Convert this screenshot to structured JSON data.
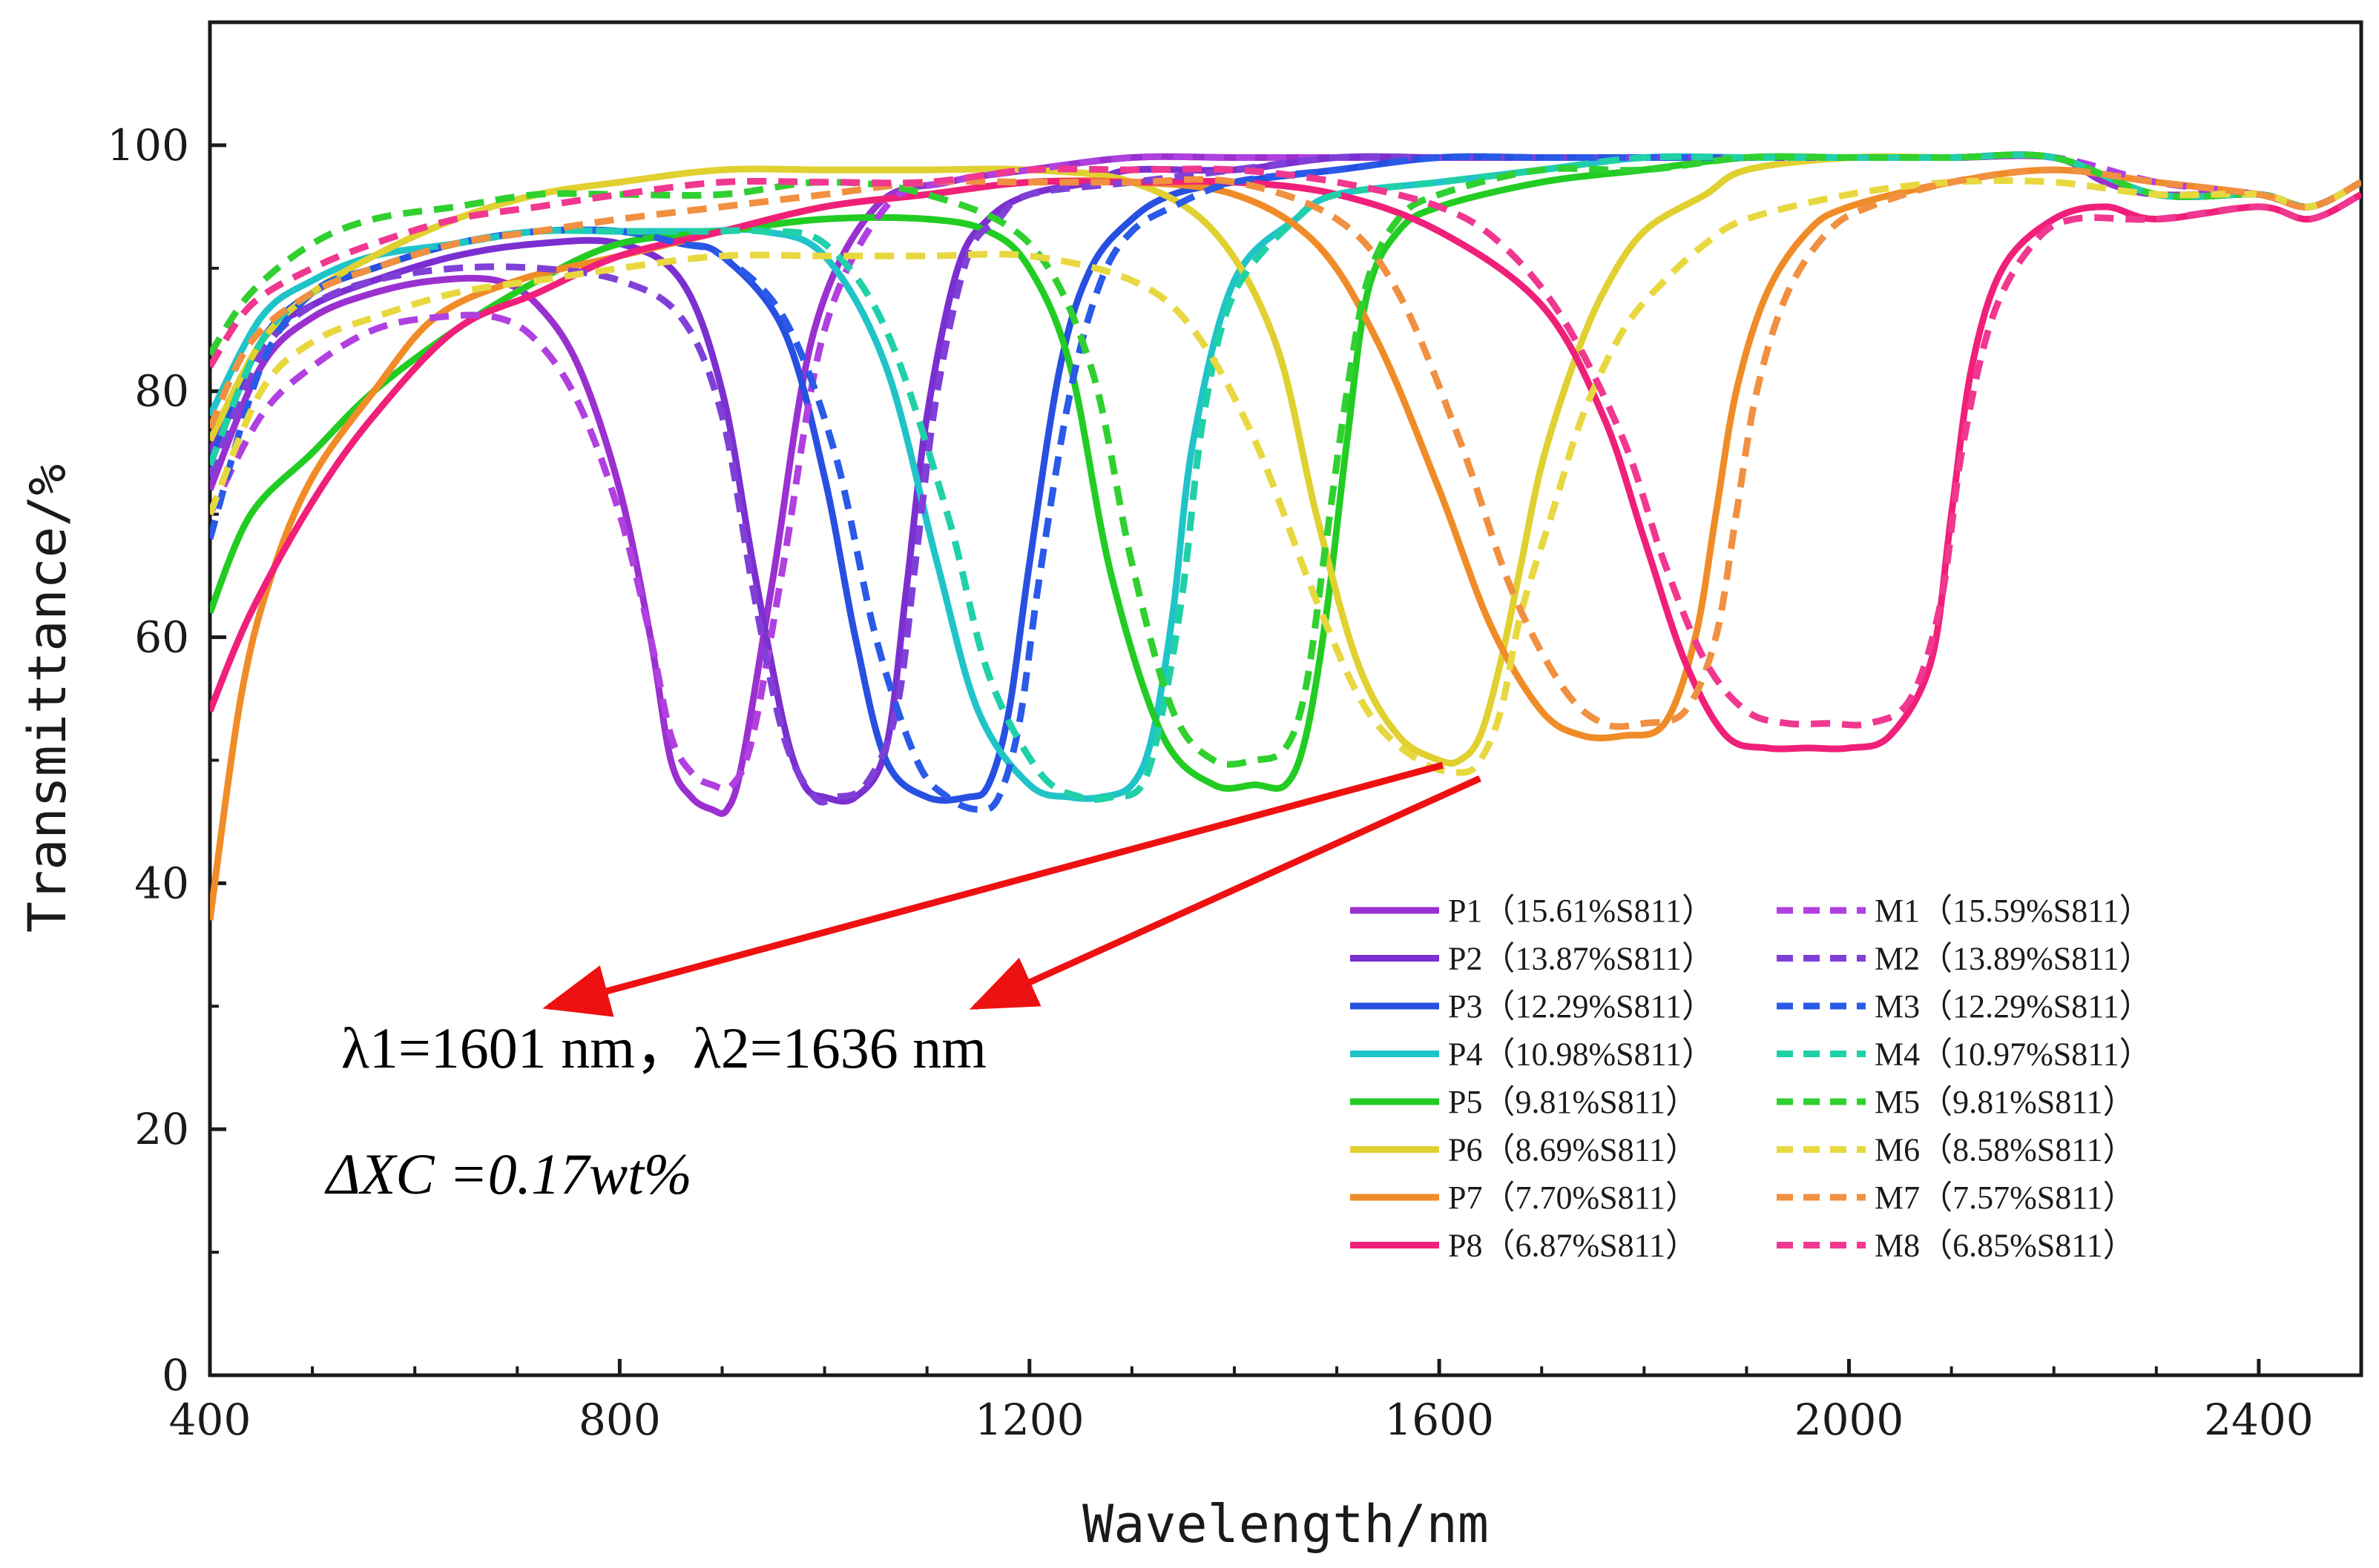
{
  "chart_data": {
    "type": "line",
    "xlabel": "Wavelength/nm",
    "ylabel": "Transmittance/%",
    "xlim": [
      400,
      2500
    ],
    "ylim": [
      0,
      110
    ],
    "xticks": [
      400,
      800,
      1200,
      1600,
      2000,
      2400
    ],
    "yticks": [
      0,
      20,
      40,
      60,
      80,
      100
    ],
    "grid": false,
    "legend_position": "bottom-right",
    "annotations": {
      "line1": "λ1=1601 nm，λ2=1636 nm",
      "line2": "ΔXC =0.17wt%"
    },
    "series": [
      {
        "name": "P1（15.61%S811）",
        "style": "solid",
        "color": "#9b30d0",
        "x": [
          400,
          450,
          500,
          560,
          620,
          680,
          720,
          760,
          800,
          830,
          850,
          870,
          890,
          905,
          920,
          950,
          990,
          1050,
          1120,
          1200,
          1300,
          1400,
          1500,
          1600,
          1650,
          1700,
          1800,
          1900,
          2000,
          2100,
          2200,
          2250,
          2300,
          2400,
          2450,
          2500
        ],
        "y": [
          72,
          82,
          86,
          88,
          89,
          89,
          87,
          82,
          72,
          60,
          50,
          47,
          46,
          46,
          50,
          65,
          85,
          95,
          97,
          98,
          99,
          99,
          99,
          99,
          99,
          99,
          99,
          99,
          99,
          99,
          99,
          97,
          96,
          96,
          95,
          97
        ]
      },
      {
        "name": "P2（13.87%S811）",
        "style": "solid",
        "color": "#7b2fd0",
        "x": [
          400,
          450,
          500,
          560,
          640,
          720,
          800,
          860,
          900,
          930,
          960,
          980,
          1000,
          1030,
          1060,
          1080,
          1100,
          1130,
          1160,
          1200,
          1260,
          1300,
          1400,
          1500,
          1600,
          1700,
          1800,
          1900,
          2000,
          2100,
          2200,
          2300,
          2400,
          2450,
          2500
        ],
        "y": [
          75,
          84,
          87,
          89,
          91,
          92,
          92,
          89,
          80,
          66,
          53,
          48,
          47,
          47,
          51,
          64,
          78,
          90,
          94,
          96,
          97,
          98,
          98,
          99,
          99,
          99,
          99,
          99,
          99,
          99,
          99,
          96,
          96,
          95,
          97
        ]
      },
      {
        "name": "P3（12.29%S811）",
        "style": "solid",
        "color": "#2850e0",
        "x": [
          400,
          450,
          500,
          560,
          640,
          720,
          800,
          860,
          900,
          960,
          1000,
          1030,
          1060,
          1100,
          1140,
          1160,
          1180,
          1200,
          1230,
          1260,
          1300,
          1340,
          1400,
          1500,
          1600,
          1700,
          1800,
          1900,
          2000,
          2100,
          2200,
          2300,
          2400,
          2450,
          2500
        ],
        "y": [
          74,
          84,
          88,
          90,
          92,
          93,
          93,
          92,
          91,
          85,
          73,
          60,
          50,
          47,
          47,
          48,
          54,
          66,
          82,
          90,
          94,
          96,
          97,
          98,
          99,
          99,
          99,
          99,
          99,
          99,
          99,
          96,
          96,
          95,
          97
        ]
      },
      {
        "name": "P4（10.98%S811）",
        "style": "solid",
        "color": "#20c4c8",
        "x": [
          400,
          450,
          500,
          560,
          640,
          720,
          800,
          880,
          940,
          1000,
          1060,
          1110,
          1150,
          1200,
          1240,
          1270,
          1300,
          1320,
          1340,
          1360,
          1400,
          1460,
          1500,
          1600,
          1700,
          1800,
          1900,
          2000,
          2100,
          2200,
          2300,
          2400,
          2450,
          2500
        ],
        "y": [
          78,
          86,
          89,
          91,
          92,
          93,
          93,
          93,
          93,
          91,
          82,
          66,
          54,
          48,
          47,
          47,
          48,
          52,
          62,
          76,
          89,
          94,
          96,
          97,
          98,
          99,
          99,
          99,
          99,
          99,
          96,
          96,
          95,
          97
        ]
      },
      {
        "name": "P5（9.81%S811）",
        "style": "solid",
        "color": "#22cc22",
        "x": [
          400,
          440,
          500,
          560,
          640,
          720,
          800,
          900,
          1000,
          1100,
          1160,
          1200,
          1240,
          1280,
          1330,
          1380,
          1420,
          1450,
          1470,
          1490,
          1510,
          1530,
          1560,
          1600,
          1700,
          1800,
          1900,
          2000,
          2100,
          2200,
          2300,
          2400,
          2450,
          2500
        ],
        "y": [
          62,
          70,
          75,
          80,
          85,
          89,
          92,
          93,
          94,
          94,
          93,
          90,
          82,
          65,
          52,
          48,
          48,
          48,
          52,
          62,
          76,
          88,
          93,
          95,
          97,
          98,
          99,
          99,
          99,
          99,
          96,
          96,
          95,
          97
        ]
      },
      {
        "name": "P6（8.69%S811）",
        "style": "solid",
        "color": "#e0d030",
        "x": [
          400,
          450,
          500,
          560,
          640,
          720,
          800,
          900,
          1000,
          1100,
          1200,
          1300,
          1380,
          1440,
          1480,
          1520,
          1560,
          1600,
          1620,
          1640,
          1660,
          1680,
          1700,
          1730,
          1760,
          1800,
          1860,
          1900,
          2000,
          2100,
          2200,
          2300,
          2400,
          2450,
          2500
        ],
        "y": [
          76,
          84,
          88,
          91,
          94,
          96,
          97,
          98,
          98,
          98,
          98,
          97,
          93,
          84,
          70,
          58,
          52,
          50,
          50,
          52,
          58,
          66,
          74,
          82,
          88,
          93,
          96,
          98,
          99,
          99,
          99,
          96,
          96,
          95,
          97
        ]
      },
      {
        "name": "P7（7.70%S811）",
        "style": "solid",
        "color": "#f08c28",
        "x": [
          400,
          430,
          460,
          500,
          560,
          620,
          700,
          800,
          900,
          1000,
          1100,
          1200,
          1300,
          1400,
          1480,
          1540,
          1600,
          1650,
          1700,
          1740,
          1780,
          1820,
          1850,
          1870,
          1890,
          1920,
          1960,
          2000,
          2100,
          2200,
          2300,
          2400,
          2450,
          2500
        ],
        "y": [
          37,
          55,
          65,
          73,
          80,
          86,
          89,
          91,
          93,
          95,
          96,
          97,
          97,
          96,
          92,
          84,
          72,
          61,
          54,
          52,
          52,
          53,
          60,
          70,
          80,
          88,
          93,
          95,
          97,
          98,
          97,
          96,
          95,
          97
        ]
      },
      {
        "name": "P8（6.87%S811）",
        "style": "solid",
        "color": "#f0207a",
        "x": [
          400,
          440,
          500,
          560,
          640,
          720,
          800,
          900,
          1000,
          1100,
          1200,
          1300,
          1400,
          1500,
          1600,
          1700,
          1760,
          1800,
          1840,
          1880,
          1920,
          1960,
          2000,
          2040,
          2080,
          2100,
          2120,
          2150,
          2200,
          2250,
          2300,
          2400,
          2450,
          2500
        ],
        "y": [
          54,
          62,
          71,
          78,
          85,
          88,
          91,
          93,
          95,
          96,
          97,
          97,
          97,
          96,
          93,
          87,
          78,
          68,
          58,
          52,
          51,
          51,
          51,
          52,
          58,
          70,
          82,
          90,
          94,
          95,
          94,
          95,
          94,
          96
        ]
      },
      {
        "name": "M1（15.59%S811）",
        "style": "dashed",
        "color": "#b040e0",
        "x": [
          400,
          450,
          500,
          560,
          620,
          680,
          720,
          760,
          800,
          830,
          850,
          870,
          890,
          910,
          930,
          960,
          1000,
          1060,
          1120,
          1200,
          1300,
          1400,
          1500,
          1600,
          1700,
          1800,
          1900,
          2000,
          2100,
          2200,
          2300,
          2400,
          2450,
          2500
        ],
        "y": [
          70,
          78,
          82,
          85,
          86,
          86,
          84,
          79,
          70,
          60,
          52,
          49,
          48,
          48,
          52,
          66,
          85,
          95,
          97,
          98,
          99,
          99,
          99,
          99,
          99,
          99,
          99,
          99,
          99,
          99,
          97,
          96,
          95,
          97
        ]
      },
      {
        "name": "M2（13.89%S811）",
        "style": "dashed",
        "color": "#8040d8",
        "x": [
          400,
          450,
          500,
          560,
          640,
          720,
          800,
          860,
          900,
          930,
          960,
          990,
          1010,
          1040,
          1070,
          1090,
          1110,
          1140,
          1170,
          1200,
          1300,
          1400,
          1500,
          1600,
          1700,
          1800,
          1900,
          2000,
          2100,
          2200,
          2300,
          2400,
          2450,
          2500
        ],
        "y": [
          73,
          83,
          87,
          89,
          90,
          90,
          89,
          86,
          78,
          64,
          52,
          47,
          47,
          48,
          54,
          67,
          80,
          91,
          94,
          96,
          97,
          98,
          99,
          99,
          99,
          99,
          99,
          99,
          99,
          99,
          96,
          96,
          95,
          97
        ]
      },
      {
        "name": "M3（12.29%S811）",
        "style": "dashed",
        "color": "#2a5ae8",
        "x": [
          400,
          450,
          500,
          560,
          640,
          720,
          800,
          860,
          900,
          960,
          1010,
          1050,
          1090,
          1120,
          1150,
          1170,
          1190,
          1210,
          1240,
          1270,
          1300,
          1340,
          1400,
          1500,
          1600,
          1700,
          1800,
          1900,
          2000,
          2100,
          2200,
          2300,
          2400,
          2450,
          2500
        ],
        "y": [
          68,
          82,
          88,
          90,
          92,
          93,
          93,
          92,
          91,
          86,
          75,
          60,
          50,
          47,
          46,
          47,
          53,
          65,
          80,
          89,
          93,
          95,
          97,
          98,
          99,
          99,
          99,
          99,
          99,
          99,
          99,
          96,
          96,
          95,
          97
        ]
      },
      {
        "name": "M4（10.97%S811）",
        "style": "dashed",
        "color": "#20d0a8",
        "x": [
          400,
          450,
          500,
          560,
          640,
          720,
          800,
          880,
          940,
          1000,
          1060,
          1120,
          1160,
          1210,
          1250,
          1280,
          1310,
          1330,
          1350,
          1370,
          1400,
          1460,
          1500,
          1600,
          1700,
          1800,
          1900,
          2000,
          2100,
          2200,
          2300,
          2400,
          2450,
          2500
        ],
        "y": [
          74,
          84,
          88,
          90,
          92,
          93,
          93,
          93,
          93,
          92,
          85,
          70,
          57,
          49,
          47,
          47,
          48,
          54,
          64,
          78,
          88,
          94,
          96,
          97,
          98,
          99,
          99,
          99,
          99,
          99,
          96,
          96,
          95,
          97
        ]
      },
      {
        "name": "M5（9.81%S811）",
        "style": "dashed",
        "color": "#30d030",
        "x": [
          400,
          440,
          500,
          560,
          640,
          720,
          800,
          900,
          1000,
          1100,
          1200,
          1260,
          1300,
          1340,
          1380,
          1420,
          1450,
          1470,
          1490,
          1510,
          1530,
          1560,
          1600,
          1700,
          1800,
          1900,
          2000,
          2100,
          2200,
          2300,
          2400,
          2450,
          2500
        ],
        "y": [
          83,
          88,
          92,
          94,
          95,
          96,
          96,
          96,
          97,
          96,
          92,
          82,
          66,
          54,
          50,
          50,
          51,
          56,
          68,
          80,
          89,
          94,
          96,
          98,
          98,
          99,
          99,
          99,
          99,
          96,
          96,
          95,
          97
        ]
      },
      {
        "name": "M6（8.58%S811）",
        "style": "dashed",
        "color": "#e8d840",
        "x": [
          400,
          450,
          500,
          560,
          640,
          720,
          800,
          900,
          1000,
          1100,
          1200,
          1300,
          1360,
          1420,
          1480,
          1530,
          1580,
          1620,
          1640,
          1660,
          1680,
          1710,
          1740,
          1780,
          1820,
          1860,
          1900,
          2000,
          2100,
          2200,
          2300,
          2400,
          2450,
          2500
        ],
        "y": [
          70,
          80,
          84,
          86,
          88,
          89,
          90,
          91,
          91,
          91,
          91,
          89,
          85,
          76,
          63,
          54,
          50,
          49,
          50,
          54,
          62,
          70,
          78,
          85,
          89,
          92,
          94,
          96,
          97,
          97,
          96,
          96,
          95,
          97
        ]
      },
      {
        "name": "M7（7.57%S811）",
        "style": "dashed",
        "color": "#f09040",
        "x": [
          400,
          440,
          500,
          560,
          640,
          720,
          800,
          900,
          1000,
          1100,
          1200,
          1300,
          1400,
          1500,
          1560,
          1620,
          1670,
          1720,
          1760,
          1800,
          1840,
          1870,
          1890,
          1910,
          1940,
          1980,
          2020,
          2100,
          2200,
          2300,
          2400,
          2450,
          2500
        ],
        "y": [
          77,
          84,
          88,
          90,
          92,
          93,
          94,
          95,
          96,
          97,
          97,
          97,
          97,
          94,
          88,
          76,
          64,
          56,
          53,
          53,
          54,
          60,
          70,
          80,
          88,
          93,
          95,
          97,
          98,
          97,
          96,
          95,
          97
        ]
      },
      {
        "name": "M8（6.85%S811）",
        "style": "dashed",
        "color": "#f03890",
        "x": [
          400,
          440,
          500,
          560,
          640,
          720,
          800,
          900,
          1000,
          1100,
          1200,
          1300,
          1400,
          1500,
          1600,
          1660,
          1720,
          1780,
          1820,
          1860,
          1900,
          1940,
          1980,
          2020,
          2060,
          2090,
          2110,
          2140,
          2180,
          2220,
          2300,
          2400,
          2450,
          2500
        ],
        "y": [
          82,
          87,
          90,
          92,
          94,
          95,
          96,
          97,
          97,
          97,
          98,
          98,
          98,
          97,
          95,
          92,
          86,
          76,
          66,
          58,
          54,
          53,
          53,
          53,
          55,
          63,
          75,
          86,
          92,
          94,
          94,
          95,
          94,
          96
        ]
      }
    ]
  }
}
